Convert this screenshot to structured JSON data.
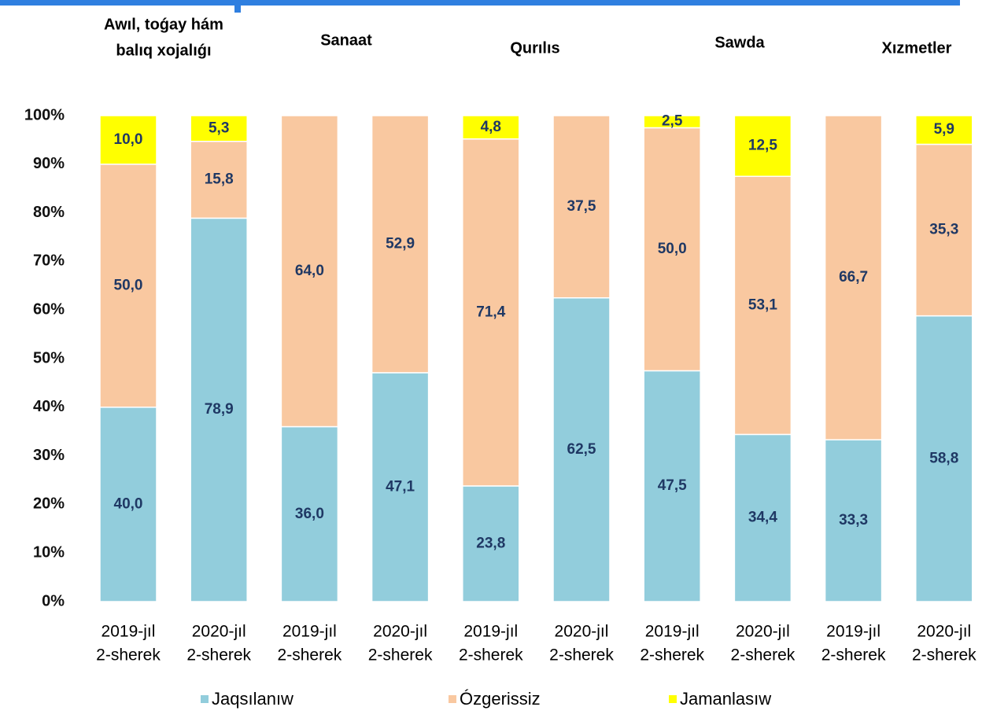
{
  "chart_data": {
    "type": "stacked_bar",
    "groups": [
      [
        "Awıl, toǵay hám",
        "balıq xojalıǵı"
      ],
      [
        "Sanaat"
      ],
      [
        "Qurılıs"
      ],
      [
        "Sawda"
      ],
      [
        "Xızmetler"
      ]
    ],
    "categories": [
      [
        "2019-jıl",
        "2-sherek"
      ],
      [
        "2020-jıl",
        "2-sherek"
      ],
      [
        "2019-jıl",
        "2-sherek"
      ],
      [
        "2020-jıl",
        "2-sherek"
      ],
      [
        "2019-jıl",
        "2-sherek"
      ],
      [
        "2020-jıl",
        "2-sherek"
      ],
      [
        "2019-jıl",
        "2-sherek"
      ],
      [
        "2020-jıl",
        "2-sherek"
      ],
      [
        "2019-jıl",
        "2-sherek"
      ],
      [
        "2020-jıl",
        "2-sherek"
      ]
    ],
    "series": [
      {
        "name": "Jaqsılanıw",
        "color": "#92cddc",
        "values": [
          40.0,
          78.9,
          36.0,
          47.1,
          23.8,
          62.5,
          47.5,
          34.4,
          33.3,
          58.8
        ],
        "value_labels": [
          "40,0",
          "78,9",
          "36,0",
          "47,1",
          "23,8",
          "62,5",
          "47,5",
          "34,4",
          "33,3",
          "58,8"
        ]
      },
      {
        "name": "Ózgerissiz",
        "color": "#f9c8a0",
        "values": [
          50.0,
          15.8,
          64.0,
          52.9,
          71.4,
          37.5,
          50.0,
          53.1,
          66.7,
          35.3
        ],
        "value_labels": [
          "50,0",
          "15,8",
          "64,0",
          "52,9",
          "71,4",
          "37,5",
          "50,0",
          "53,1",
          "66,7",
          "35,3"
        ]
      },
      {
        "name": "Jamanlasıw",
        "color": "#ffff00",
        "values": [
          10.0,
          5.3,
          null,
          null,
          4.8,
          null,
          2.5,
          12.5,
          null,
          5.9
        ],
        "value_labels": [
          "10,0",
          "5,3",
          null,
          null,
          "4,8",
          null,
          "2,5",
          "12,5",
          null,
          "5,9"
        ]
      }
    ],
    "ylim": [
      0,
      100
    ],
    "yticks": [
      {
        "value": 0,
        "label": "0%"
      },
      {
        "value": 10,
        "label": "10%"
      },
      {
        "value": 20,
        "label": "20%"
      },
      {
        "value": 30,
        "label": "30%"
      },
      {
        "value": 40,
        "label": "40%"
      },
      {
        "value": 50,
        "label": "50%"
      },
      {
        "value": 60,
        "label": "60%"
      },
      {
        "value": 70,
        "label": "70%"
      },
      {
        "value": 80,
        "label": "80%"
      },
      {
        "value": 90,
        "label": "90%"
      },
      {
        "value": 100,
        "label": "100%"
      }
    ]
  }
}
